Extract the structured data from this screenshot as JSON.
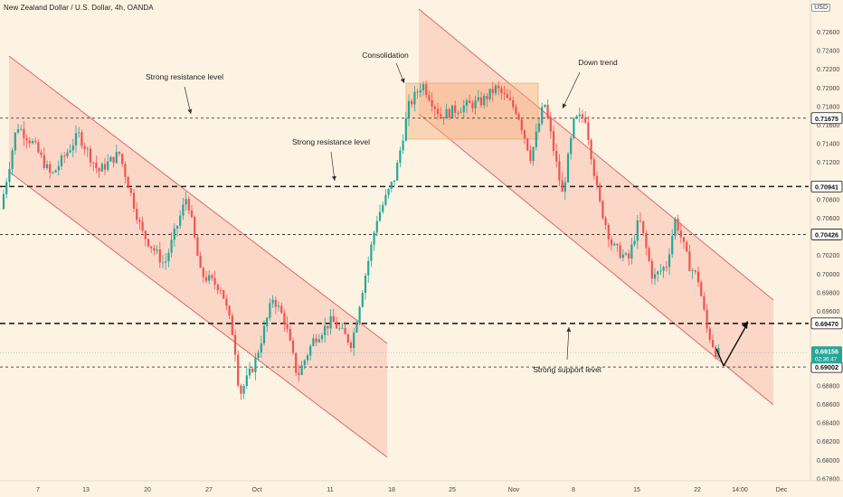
{
  "header": {
    "title": "New Zealand Dollar / U.S. Dollar, 4h, OANDA",
    "currency_badge": "USD"
  },
  "chart_data": {
    "type": "candlestick",
    "price_scale": {
      "min": 0.678,
      "max": 0.728,
      "ticks": [
        "0.72600",
        "0.72400",
        "0.72200",
        "0.72000",
        "0.71800",
        "0.71600",
        "0.71400",
        "0.71200",
        "0.70800",
        "0.70600",
        "0.70200",
        "0.70000",
        "0.69800",
        "0.69600",
        "0.68800",
        "0.68600",
        "0.68400",
        "0.68200",
        "0.68000",
        "0.67800"
      ]
    },
    "time_axis": {
      "labels": [
        "7",
        "13",
        "20",
        "27",
        "Oct",
        "11",
        "18",
        "25",
        "Nov",
        "8",
        "15",
        "22",
        "14:00",
        "Dec"
      ]
    },
    "horizontal_levels": [
      {
        "price": "0.71675",
        "style": "dashed-thin"
      },
      {
        "price": "0.70941",
        "style": "dashed-thick"
      },
      {
        "price": "0.70426",
        "style": "dashed-thin"
      },
      {
        "price": "0.69470",
        "style": "dashed-thick"
      },
      {
        "price": "0.69002",
        "style": "dashed-thin"
      }
    ],
    "current_price": {
      "value": "0.69156",
      "countdown": "02:36:47",
      "color": "#26a69a"
    },
    "annotations": [
      "Strong resistance level",
      "Strong resistance level",
      "Consolidation",
      "Down trend",
      "Strong support level"
    ],
    "colors": {
      "up": "#26a69a",
      "down": "#ef5350",
      "channel_fill": "#f9c0b0",
      "channel_edge": "#e06666",
      "level": "#222222"
    }
  }
}
